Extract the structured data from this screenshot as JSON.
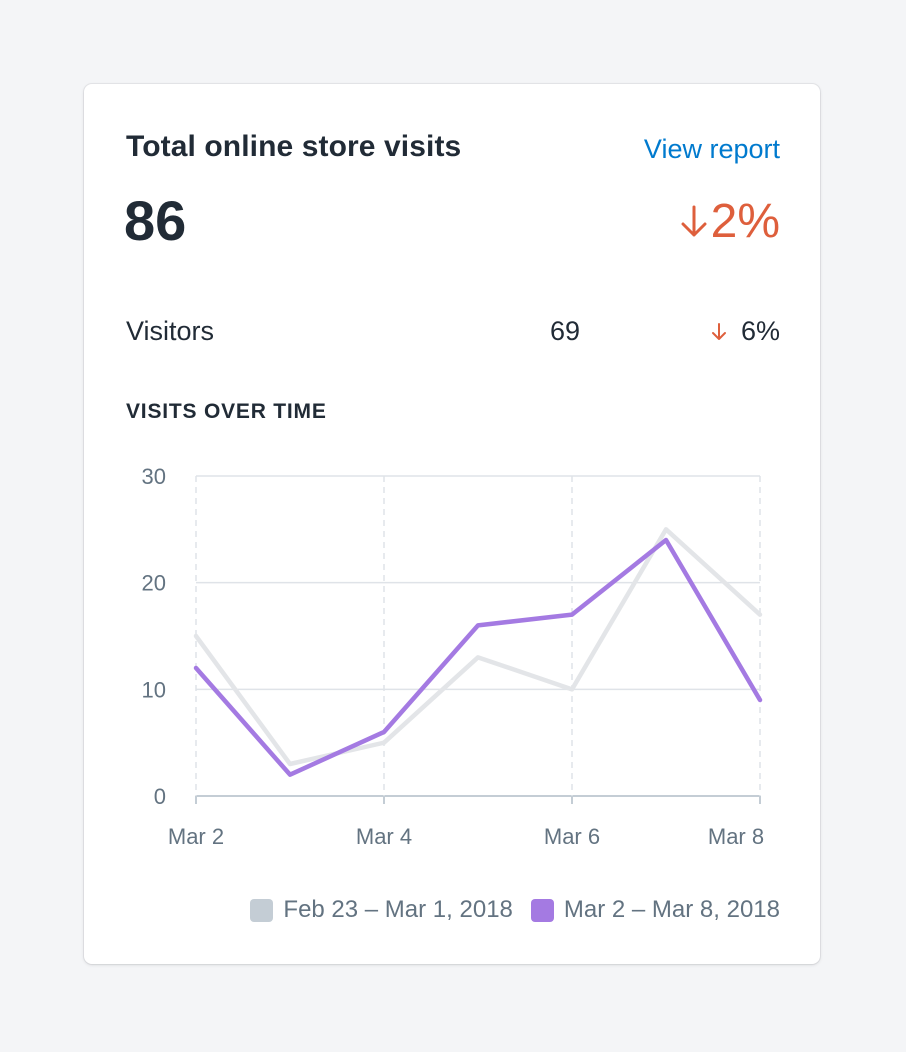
{
  "card": {
    "title": "Total online store visits",
    "view_report_label": "View report",
    "total_value": "86",
    "total_change": "2%",
    "total_change_direction": "down",
    "accent_negative": "#de5f3c",
    "link_color": "#007ace"
  },
  "metric": {
    "label": "Visitors",
    "value": "69",
    "change": "6%",
    "change_direction": "down"
  },
  "section": {
    "heading": "VISITS OVER TIME"
  },
  "chart_data": {
    "type": "line",
    "title": "",
    "xlabel": "",
    "ylabel": "",
    "x": [
      "Mar 2",
      "Mar 3",
      "Mar 4",
      "Mar 5",
      "Mar 6",
      "Mar 7",
      "Mar 8"
    ],
    "x_tick_labels": [
      "Mar 2",
      "Mar 4",
      "Mar 6",
      "Mar 8"
    ],
    "y_ticks": [
      0,
      10,
      20,
      30
    ],
    "ylim": [
      0,
      30
    ],
    "grid": true,
    "series": [
      {
        "name": "Feb 23 – Mar 1, 2018",
        "color": "#e3e5e8",
        "legend_color": "#c4cdd5",
        "values": [
          15,
          3,
          5,
          13,
          10,
          25,
          17
        ]
      },
      {
        "name": "Mar 2 – Mar 8, 2018",
        "color": "#a47ae2",
        "legend_color": "#a47ae2",
        "values": [
          12,
          2,
          6,
          16,
          17,
          24,
          9
        ]
      }
    ],
    "legend_position": "bottom-right"
  }
}
